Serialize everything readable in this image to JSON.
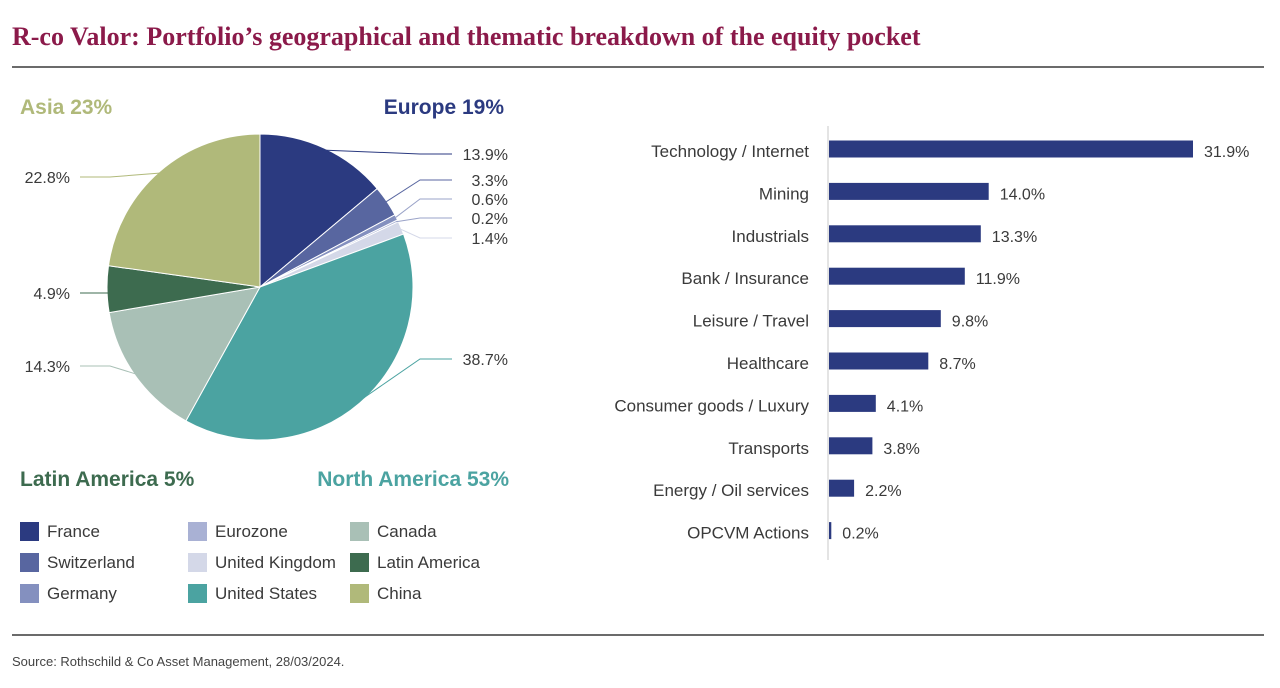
{
  "header": {
    "title": "R-co Valor: Portfolio’s geographical and thematic breakdown of the equity pocket",
    "title_color": "#8b1a4a"
  },
  "footer": {
    "source": "Source: Rothschild & Co Asset Management, 28/03/2024."
  },
  "chart_data": [
    {
      "type": "pie",
      "region_labels": [
        {
          "text": "Asia 23%",
          "color": "#b0b97a"
        },
        {
          "text": "Europe 19%",
          "color": "#2b3a80"
        },
        {
          "text": "Latin America 5%",
          "color": "#3d6b4f"
        },
        {
          "text": "North America 53%",
          "color": "#4ba3a1"
        }
      ],
      "slices": [
        {
          "name": "France",
          "value": 13.9,
          "label": "13.9%",
          "color": "#2b3a80"
        },
        {
          "name": "Switzerland",
          "value": 3.3,
          "label": "3.3%",
          "color": "#5866a0"
        },
        {
          "name": "Germany",
          "value": 0.6,
          "label": "0.6%",
          "color": "#8490bf"
        },
        {
          "name": "Eurozone",
          "value": 0.2,
          "label": "0.2%",
          "color": "#a9b1d4"
        },
        {
          "name": "United Kingdom",
          "value": 1.4,
          "label": "1.4%",
          "color": "#d4d8e8"
        },
        {
          "name": "United States",
          "value": 38.7,
          "label": "38.7%",
          "color": "#4ba3a1"
        },
        {
          "name": "Canada",
          "value": 14.3,
          "label": "14.3%",
          "color": "#a9c0b6"
        },
        {
          "name": "Latin America",
          "value": 4.9,
          "label": "4.9%",
          "color": "#3d6b4f"
        },
        {
          "name": "China",
          "value": 22.8,
          "label": "22.8%",
          "color": "#b0b97a"
        }
      ],
      "legend": [
        "France",
        "Eurozone",
        "Canada",
        "Switzerland",
        "United Kingdom",
        "Latin America",
        "Germany",
        "United States",
        "China"
      ]
    },
    {
      "type": "bar",
      "orientation": "horizontal",
      "bar_color": "#2b3a80",
      "categories": [
        "Technology / Internet",
        "Mining",
        "Industrials",
        "Bank / Insurance",
        "Leisure / Travel",
        "Healthcare",
        "Consumer goods / Luxury",
        "Transports",
        "Energy / Oil services",
        "OPCVM Actions"
      ],
      "values": [
        31.9,
        14.0,
        13.3,
        11.9,
        9.8,
        8.7,
        4.1,
        3.8,
        2.2,
        0.2
      ],
      "labels": [
        "31.9%",
        "14.0%",
        "13.3%",
        "11.9%",
        "9.8%",
        "8.7%",
        "4.1%",
        "3.8%",
        "2.2%",
        "0.2%"
      ],
      "xlim": [
        0,
        31.9
      ]
    }
  ]
}
